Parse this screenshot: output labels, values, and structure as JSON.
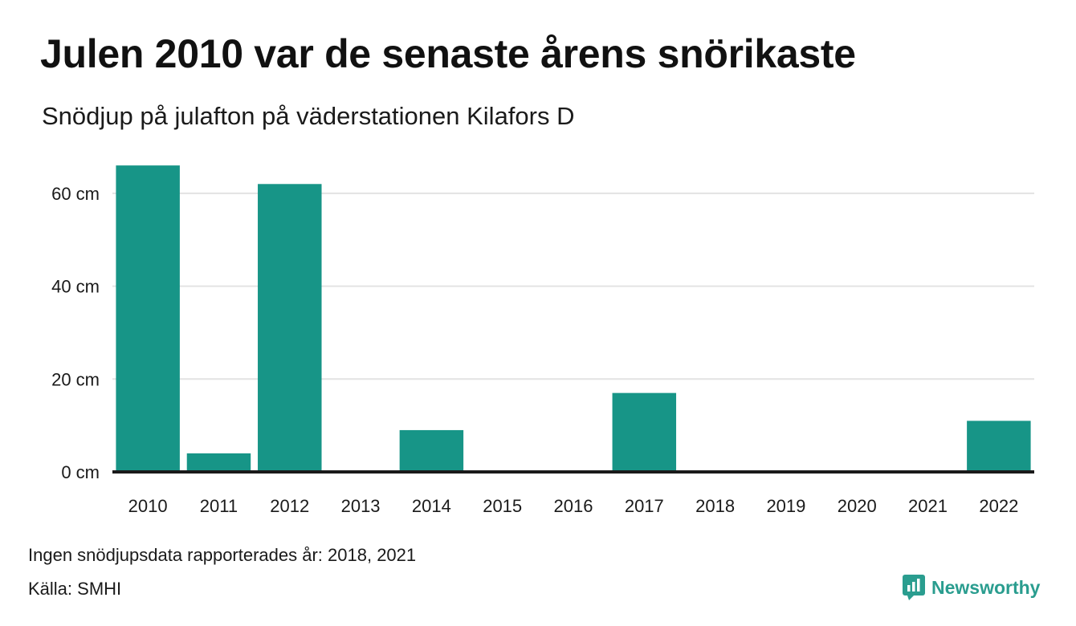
{
  "header": {
    "title": "Julen 2010 var de senaste årens snörikaste",
    "subtitle": "Snödjup på julafton på väderstationen Kilafors D"
  },
  "footer": {
    "note": "Ingen snödjupsdata rapporterades år: 2018, 2021",
    "source_label": "Källa:",
    "source_value": "SMHI",
    "brand": "Newsworthy",
    "brand_icon": "newsworthy-logo-icon"
  },
  "colors": {
    "bar": "#179587",
    "grid": "#e3e3e3",
    "baseline": "#1a1a1a",
    "brand": "#2a9d8f"
  },
  "chart_data": {
    "type": "bar",
    "title": "Julen 2010 var de senaste årens snörikaste",
    "subtitle": "Snödjup på julafton på väderstationen Kilafors D",
    "xlabel": "",
    "ylabel": "",
    "categories": [
      "2010",
      "2011",
      "2012",
      "2013",
      "2014",
      "2015",
      "2016",
      "2017",
      "2018",
      "2019",
      "2020",
      "2021",
      "2022"
    ],
    "values": [
      66,
      4,
      62,
      0,
      9,
      0,
      0,
      17,
      null,
      0,
      0,
      null,
      11
    ],
    "ylim": [
      0,
      70
    ],
    "yticks": [
      0,
      20,
      40,
      60
    ],
    "ytick_labels": [
      "0 cm",
      "20 cm",
      "40 cm",
      "60 cm"
    ],
    "unit": "cm",
    "grid": true,
    "legend": "none"
  }
}
